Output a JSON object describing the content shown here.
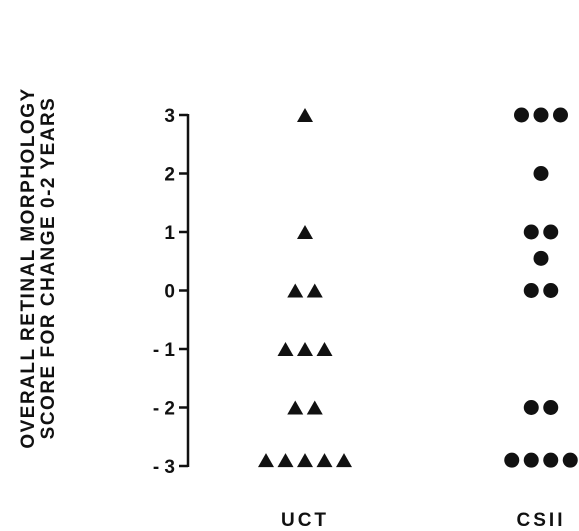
{
  "chart_data": {
    "type": "scatter",
    "title": "",
    "ylabel_lines": [
      "OVERALL RETINAL MORPHOLOGY",
      "SCORE FOR CHANGE 0-2 YEARS"
    ],
    "xlabel": "",
    "ylim": [
      -3,
      3
    ],
    "y_ticks": [
      3,
      2,
      1,
      0,
      -1,
      -2,
      -3
    ],
    "y_tick_labels": [
      "3",
      "2",
      "1",
      "0",
      "- 1",
      "- 2",
      "- 3"
    ],
    "categories": [
      "UCT",
      "CSII"
    ],
    "series": [
      {
        "name": "UCT",
        "marker": "triangle",
        "points": [
          {
            "y": 3,
            "count": 1
          },
          {
            "y": 1,
            "count": 1
          },
          {
            "y": 0,
            "count": 2
          },
          {
            "y": -1,
            "count": 3
          },
          {
            "y": -2,
            "count": 2
          },
          {
            "y": -2.9,
            "count": 5
          }
        ]
      },
      {
        "name": "CSII",
        "marker": "circle",
        "points": [
          {
            "y": 3,
            "count": 3
          },
          {
            "y": 2,
            "count": 1
          },
          {
            "y": 1,
            "count": 2
          },
          {
            "y": 0.55,
            "count": 1
          },
          {
            "y": 0,
            "count": 2
          },
          {
            "y": -2,
            "count": 2
          },
          {
            "y": -2.9,
            "count": 4
          }
        ]
      }
    ],
    "grid": false,
    "color": "#111111"
  }
}
